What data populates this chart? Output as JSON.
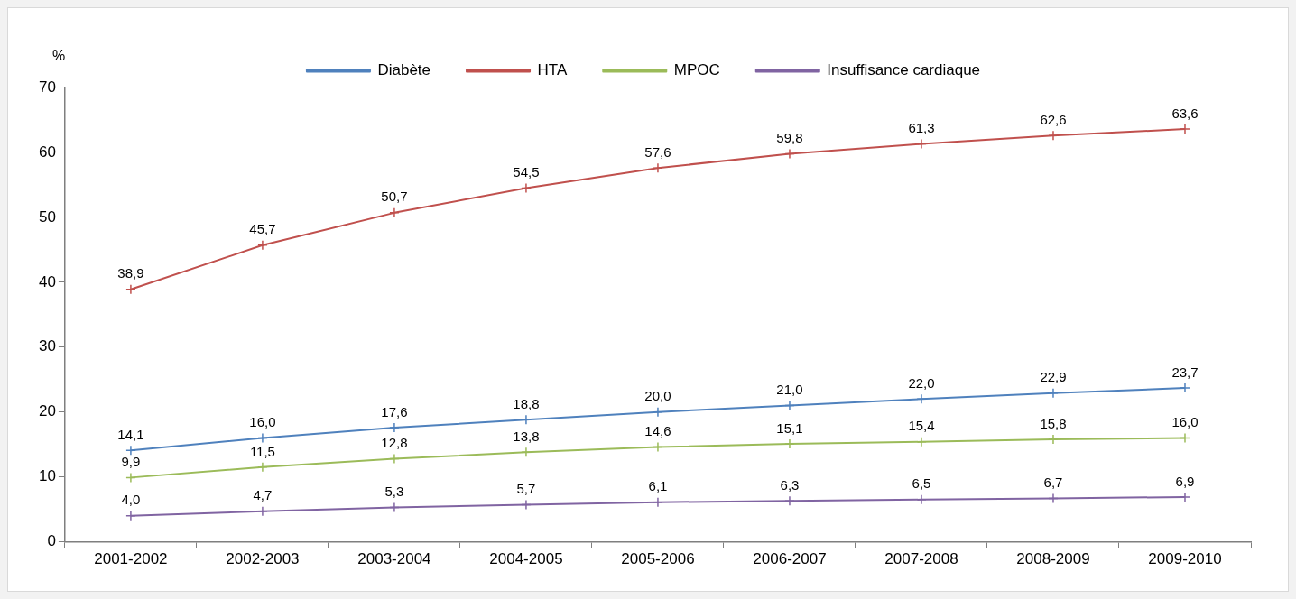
{
  "chart_data": {
    "type": "line",
    "ylabel": "%",
    "categories": [
      "2001-2002",
      "2002-2003",
      "2003-2004",
      "2004-2005",
      "2005-2006",
      "2006-2007",
      "2007-2008",
      "2008-2009",
      "2009-2010"
    ],
    "series": [
      {
        "name": "Diabète",
        "color": "#4f81bd",
        "values": [
          14.1,
          16.0,
          17.6,
          18.8,
          20.0,
          21.0,
          22.0,
          22.9,
          23.7
        ],
        "value_labels": [
          "14,1",
          "16,0",
          "17,6",
          "18,8",
          "20,0",
          "21,0",
          "22,0",
          "22,9",
          "23,7"
        ]
      },
      {
        "name": "HTA",
        "color": "#c0504d",
        "values": [
          38.9,
          45.7,
          50.7,
          54.5,
          57.6,
          59.8,
          61.3,
          62.6,
          63.6
        ],
        "value_labels": [
          "38,9",
          "45,7",
          "50,7",
          "54,5",
          "57,6",
          "59,8",
          "61,3",
          "62,6",
          "63,6"
        ]
      },
      {
        "name": "MPOC",
        "color": "#9bbb59",
        "values": [
          9.9,
          11.5,
          12.8,
          13.8,
          14.6,
          15.1,
          15.4,
          15.8,
          16.0
        ],
        "value_labels": [
          "9,9",
          "11,5",
          "12,8",
          "13,8",
          "14,6",
          "15,1",
          "15,4",
          "15,8",
          "16,0"
        ]
      },
      {
        "name": "Insuffisance cardiaque",
        "color": "#8064a2",
        "values": [
          4.0,
          4.7,
          5.3,
          5.7,
          6.1,
          6.3,
          6.5,
          6.7,
          6.9
        ],
        "value_labels": [
          "4,0",
          "4,7",
          "5,3",
          "5,7",
          "6,1",
          "6,3",
          "6,5",
          "6,7",
          "6,9"
        ]
      }
    ],
    "ylim": [
      0,
      70
    ],
    "yticks": [
      0,
      10,
      20,
      30,
      40,
      50,
      60,
      70
    ],
    "grid": false,
    "legend": "top",
    "marker": "cross",
    "line_style": "solid"
  }
}
